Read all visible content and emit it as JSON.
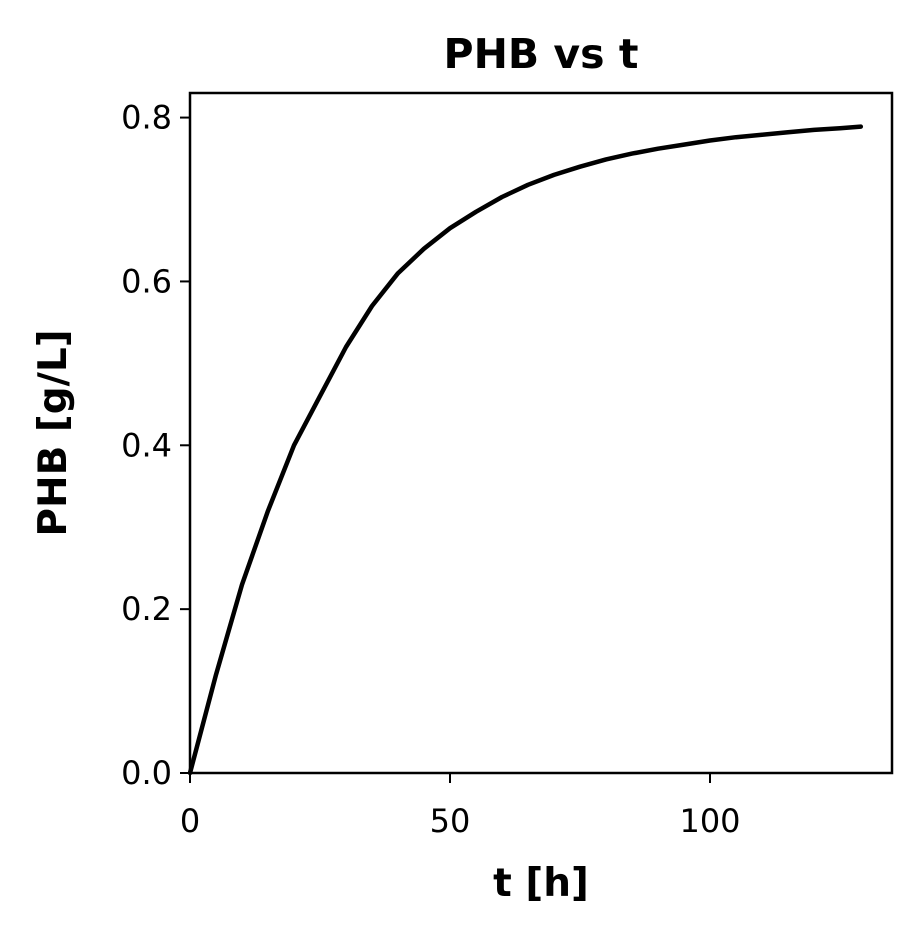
{
  "chart_data": {
    "type": "line",
    "title": "PHB vs t",
    "xlabel": "t [h]",
    "ylabel": "PHB [g/L]",
    "xlim": [
      0,
      135
    ],
    "ylim": [
      0,
      0.83
    ],
    "xticks": [
      0,
      50,
      100
    ],
    "xtick_labels": [
      "0",
      "50",
      "100"
    ],
    "yticks": [
      0.0,
      0.2,
      0.4,
      0.6,
      0.8
    ],
    "ytick_labels": [
      "0.0",
      "0.2",
      "0.4",
      "0.6",
      "0.8"
    ],
    "grid": false,
    "line_color": "#000000",
    "series": [
      {
        "x": [
          0,
          5,
          10,
          15,
          20,
          25,
          30,
          35,
          40,
          45,
          50,
          55,
          60,
          65,
          70,
          75,
          80,
          85,
          90,
          95,
          100,
          105,
          110,
          115,
          120,
          125,
          129
        ],
        "y": [
          0.0,
          0.12,
          0.23,
          0.32,
          0.4,
          0.46,
          0.52,
          0.57,
          0.61,
          0.64,
          0.665,
          0.685,
          0.703,
          0.718,
          0.73,
          0.74,
          0.749,
          0.756,
          0.762,
          0.767,
          0.772,
          0.776,
          0.779,
          0.782,
          0.785,
          0.787,
          0.789
        ]
      }
    ]
  }
}
